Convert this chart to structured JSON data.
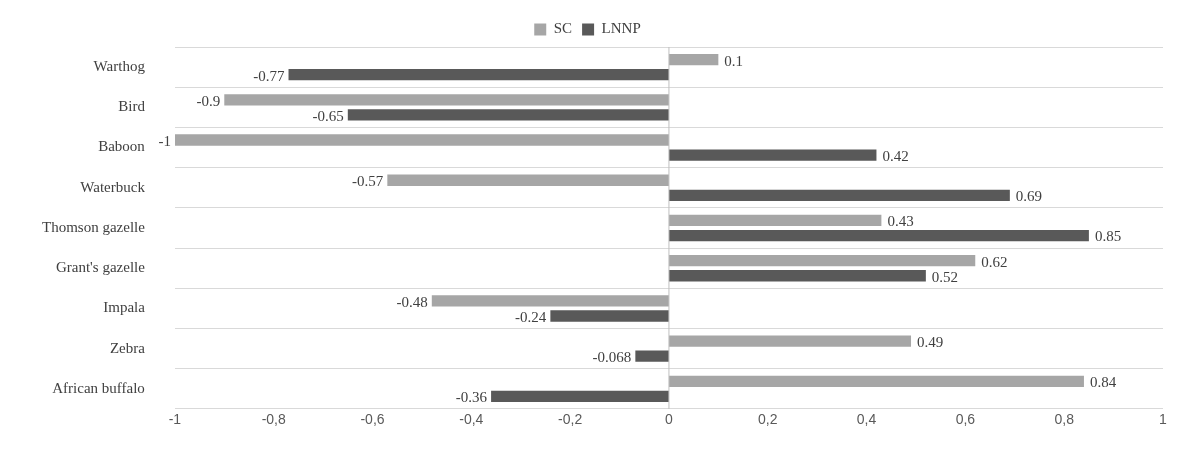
{
  "chart_data": {
    "type": "bar",
    "orientation": "horizontal",
    "categories": [
      "Warthog",
      "Bird",
      "Baboon",
      "Waterbuck",
      "Thomson gazelle",
      "Grant's gazelle",
      "Impala",
      "Zebra",
      "African buffalo"
    ],
    "series": [
      {
        "name": "SC",
        "color": "#a6a6a6",
        "values": [
          0.1,
          -0.9,
          -1,
          -0.57,
          0.43,
          0.62,
          -0.48,
          0.49,
          0.84
        ]
      },
      {
        "name": "LNNP",
        "color": "#595959",
        "values": [
          -0.77,
          -0.65,
          0.42,
          0.69,
          0.85,
          0.52,
          -0.24,
          -0.068,
          -0.36
        ]
      }
    ],
    "xlim": [
      -1,
      1
    ],
    "xticks": [
      {
        "value": -1,
        "label": "-1"
      },
      {
        "value": -0.8,
        "label": "-0,8"
      },
      {
        "value": -0.6,
        "label": "-0,6"
      },
      {
        "value": -0.4,
        "label": "-0,4"
      },
      {
        "value": -0.2,
        "label": "-0,2"
      },
      {
        "value": 0,
        "label": "0"
      },
      {
        "value": 0.2,
        "label": "0,2"
      },
      {
        "value": 0.4,
        "label": "0,4"
      },
      {
        "value": 0.6,
        "label": "0,6"
      },
      {
        "value": 0.8,
        "label": "0,8"
      },
      {
        "value": 1,
        "label": "1"
      }
    ],
    "grid": "y",
    "legend": "top",
    "data_labels": true
  }
}
